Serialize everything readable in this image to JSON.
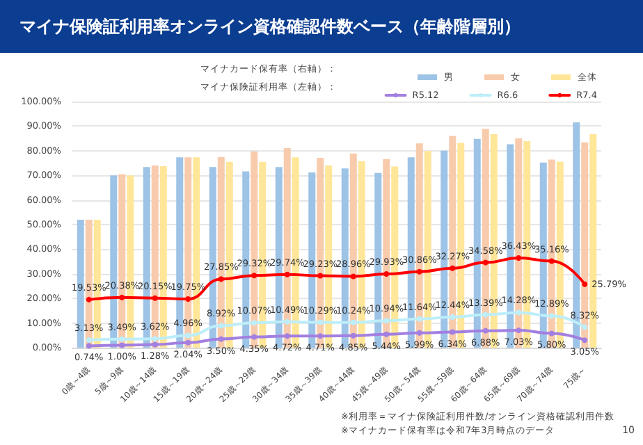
{
  "chart_data": {
    "type": "bar",
    "title": "マイナ保険証利用率オンライン資格確認件数ベース（年齢階層別）",
    "categories": [
      "0歳～4歳",
      "5歳～9歳",
      "10歳～14歳",
      "15歳～19歳",
      "20歳～24歳",
      "25歳～29歳",
      "30歳～34歳",
      "35歳～39歳",
      "40歳～44歳",
      "45歳～49歳",
      "50歳～54歳",
      "55歳～59歳",
      "60歳～64歳",
      "65歳～69歳",
      "70歳～74歳",
      "75歳～"
    ],
    "series": [
      {
        "type": "bar",
        "name": "男",
        "color": "#9dc3e6",
        "values": [
          52,
          70,
          73.4,
          77.3,
          73.4,
          71.6,
          73.4,
          71.2,
          72.8,
          71,
          77.3,
          80,
          84.8,
          82.6,
          75.2,
          91.5
        ]
      },
      {
        "type": "bar",
        "name": "女",
        "color": "#f8cbad",
        "values": [
          52,
          70.5,
          74,
          77.3,
          77.5,
          79.7,
          81.1,
          77.1,
          78.9,
          76.6,
          83,
          86,
          88.9,
          85,
          76.4,
          83.4
        ]
      },
      {
        "type": "bar",
        "name": "全体",
        "color": "#ffe699",
        "values": [
          52,
          70,
          73.7,
          77.3,
          75.5,
          75.5,
          77.3,
          74,
          75.8,
          73.6,
          79.9,
          83.2,
          86.7,
          83.9,
          75.6,
          86.7
        ]
      },
      {
        "type": "line",
        "name": "R5.12",
        "color": "#a27fe0",
        "values": [
          0.74,
          1.0,
          1.28,
          2.04,
          3.5,
          4.35,
          4.72,
          4.71,
          4.85,
          5.44,
          5.99,
          6.34,
          6.88,
          7.03,
          5.8,
          3.05
        ],
        "value_labels": [
          "0.74%",
          "1.00%",
          "1.28%",
          "2.04%",
          "3.50%",
          "4.35%",
          "4.72%",
          "4.71%",
          "4.85%",
          "5.44%",
          "5.99%",
          "6.34%",
          "6.88%",
          "7.03%",
          "5.80%",
          "3.05%"
        ]
      },
      {
        "type": "line",
        "name": "R6.6",
        "color": "#bdeefa",
        "values": [
          3.13,
          3.49,
          3.62,
          4.96,
          8.92,
          10.07,
          10.49,
          10.29,
          10.24,
          10.94,
          11.64,
          12.44,
          13.39,
          14.28,
          12.89,
          8.32
        ],
        "value_labels": [
          "3.13%",
          "3.49%",
          "3.62%",
          "4.96%",
          "8.92%",
          "10.07%",
          "10.49%",
          "10.29%",
          "10.24%",
          "10.94%",
          "11.64%",
          "12.44%",
          "13.39%",
          "14.28%",
          "12.89%",
          "8.32%"
        ]
      },
      {
        "type": "line",
        "name": "R7.4",
        "color": "#ff0000",
        "values": [
          19.53,
          20.38,
          20.15,
          19.75,
          27.85,
          29.32,
          29.74,
          29.23,
          28.96,
          29.93,
          30.86,
          32.27,
          34.58,
          36.43,
          35.16,
          25.79
        ],
        "value_labels": [
          "19.53%",
          "20.38%",
          "20.15%",
          "19.75%",
          "27.85%",
          "29.32%",
          "29.74%",
          "29.23%",
          "28.96%",
          "29.93%",
          "30.86%",
          "32.27%",
          "34.58%",
          "36.43%",
          "35.16%",
          "25.79%"
        ]
      }
    ],
    "ylim": [
      0,
      100
    ],
    "yticks": [
      {
        "value": 0,
        "label": "0.00%"
      },
      {
        "value": 10,
        "label": "10.00%"
      },
      {
        "value": 20,
        "label": "20.00%"
      },
      {
        "value": 30,
        "label": "30.00%"
      },
      {
        "value": 40,
        "label": "40.00%"
      },
      {
        "value": 50,
        "label": "50.00%"
      },
      {
        "value": 60,
        "label": "60.00%"
      },
      {
        "value": 70,
        "label": "70.00%"
      },
      {
        "value": 80,
        "label": "80.00%"
      },
      {
        "value": 90,
        "label": "90.00%"
      },
      {
        "value": 100,
        "label": "100.00%"
      }
    ],
    "grid": "y",
    "legend": "top right",
    "marker": "circle",
    "line_style": "solid",
    "annotations": [
      "マイナカード保有率（右軸）：",
      "マイナ保険証利用率（左軸）：",
      "※利用率＝マイナ保険証利用件数/オンライン資格確認利用件数",
      "※マイナカード保有率は令和7年3月時点のデータ",
      "10"
    ]
  }
}
